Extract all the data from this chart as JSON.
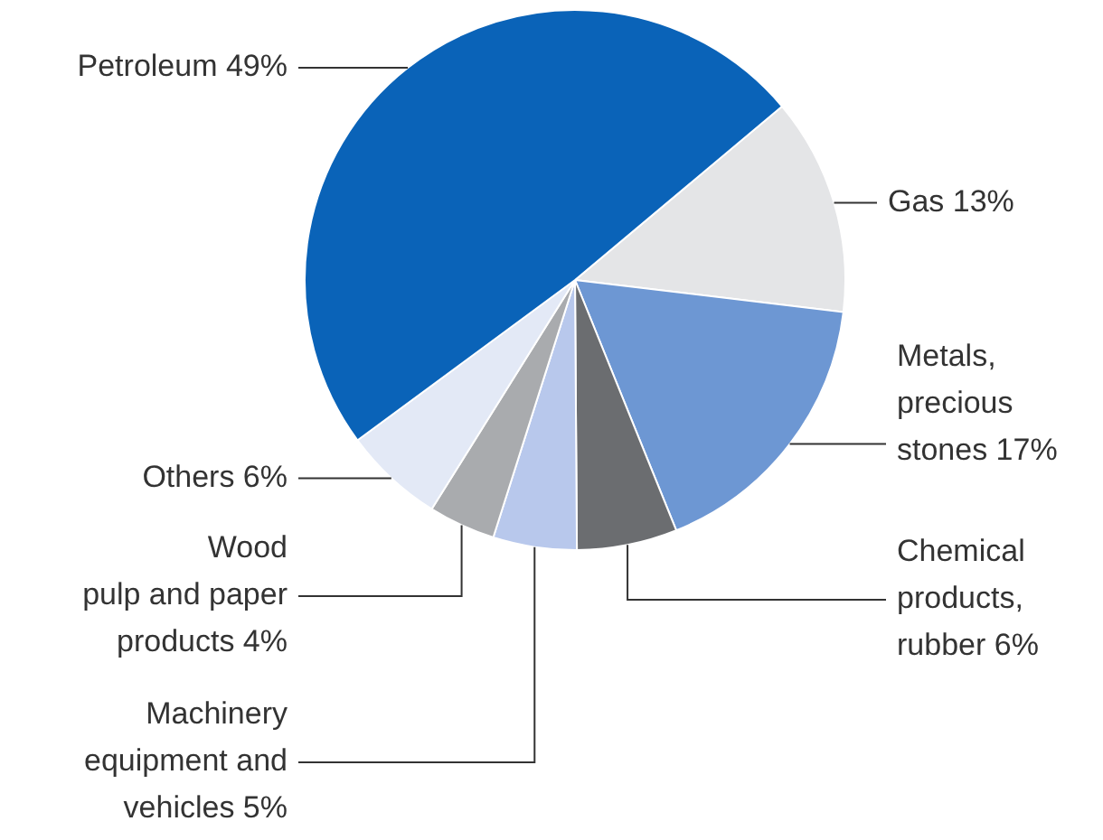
{
  "chart_data": {
    "type": "pie",
    "categories": [
      "Gas",
      "Metals,\nprecious\nstones",
      "Chemical\nproducts,\nrubber",
      "Machinery\nequipment and\nvehicles",
      "Wood\npulp and paper\nproducts",
      "Others",
      "Petroleum"
    ],
    "values": [
      13,
      17,
      6,
      5,
      4,
      6,
      49
    ],
    "value_labels": [
      "13%",
      "17%",
      "6%",
      "5%",
      "4%",
      "6%",
      "49%"
    ],
    "colors": [
      "#e4e5e7",
      "#6d97d3",
      "#6b6d70",
      "#b8c8ec",
      "#a9abae",
      "#e3e9f6",
      "#0a63b8"
    ],
    "legend": false
  }
}
